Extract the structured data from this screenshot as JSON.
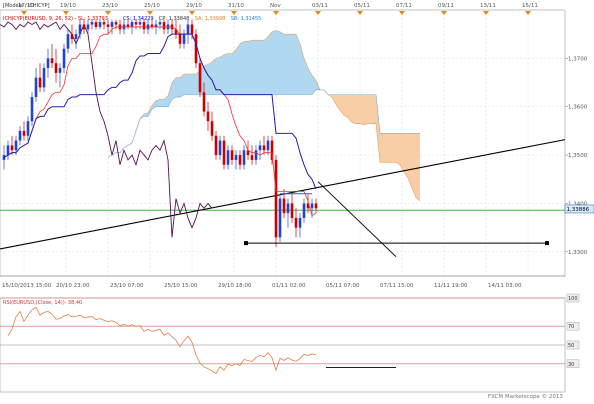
{
  "chart_data": [
    {
      "type": "candlestick",
      "top_dates": [
        "17/10",
        "19/10",
        "23/10",
        "25/10",
        "29/10",
        "31/10",
        "Nov",
        "03/11",
        "05/11",
        "07/11",
        "09/11",
        "13/11",
        "15/11"
      ],
      "price_ticks": [
        "1,3700",
        "1,3600",
        "1,3500",
        "1,3400",
        "1,3300"
      ],
      "ylim": [
        1.325,
        1.38
      ],
      "last_price_label": "1,33886",
      "legend_lines": [
        {
          "text": "[Modèle : ICHICYP]",
          "color": "#333333"
        },
        {
          "text": "ICHICYP(EURUSD, 9, 26, 52) - SL: 1,33793",
          "color": "#cc0000"
        },
        {
          "text": "CS: 1,34229",
          "color": "#0000cc"
        },
        {
          "text": "CP: 1,33848",
          "color": "#333333"
        },
        {
          "text": "SA: 1,33998",
          "color": "#e08020"
        },
        {
          "text": "SB: 1,31455",
          "color": "#2080e0"
        }
      ],
      "x_time_labels": [
        "15/10/2013 15:00",
        "20/10 23:00",
        "23/10 07:00",
        "25/10 15:00",
        "29/10 18:00",
        "01/11 02:00",
        "05/11 07:00",
        "07/11 15:00",
        "11/11 19:00",
        "14/11 03:00"
      ],
      "candles": [
        {
          "o": 1.349,
          "h": 1.352,
          "l": 1.347,
          "c": 1.35
        },
        {
          "o": 1.35,
          "h": 1.353,
          "l": 1.349,
          "c": 1.352
        },
        {
          "o": 1.352,
          "h": 1.354,
          "l": 1.35,
          "c": 1.351
        },
        {
          "o": 1.351,
          "h": 1.354,
          "l": 1.35,
          "c": 1.353
        },
        {
          "o": 1.353,
          "h": 1.356,
          "l": 1.352,
          "c": 1.355
        },
        {
          "o": 1.355,
          "h": 1.357,
          "l": 1.353,
          "c": 1.354
        },
        {
          "o": 1.354,
          "h": 1.358,
          "l": 1.353,
          "c": 1.357
        },
        {
          "o": 1.357,
          "h": 1.363,
          "l": 1.356,
          "c": 1.362
        },
        {
          "o": 1.362,
          "h": 1.368,
          "l": 1.361,
          "c": 1.366
        },
        {
          "o": 1.366,
          "h": 1.369,
          "l": 1.363,
          "c": 1.364
        },
        {
          "o": 1.364,
          "h": 1.369,
          "l": 1.363,
          "c": 1.368
        },
        {
          "o": 1.368,
          "h": 1.372,
          "l": 1.366,
          "c": 1.37
        },
        {
          "o": 1.37,
          "h": 1.373,
          "l": 1.368,
          "c": 1.369
        },
        {
          "o": 1.369,
          "h": 1.372,
          "l": 1.365,
          "c": 1.367
        },
        {
          "o": 1.367,
          "h": 1.369,
          "l": 1.364,
          "c": 1.368
        },
        {
          "o": 1.368,
          "h": 1.373,
          "l": 1.367,
          "c": 1.372
        },
        {
          "o": 1.372,
          "h": 1.376,
          "l": 1.371,
          "c": 1.375
        },
        {
          "o": 1.375,
          "h": 1.377,
          "l": 1.373,
          "c": 1.374
        },
        {
          "o": 1.374,
          "h": 1.376,
          "l": 1.372,
          "c": 1.375
        },
        {
          "o": 1.375,
          "h": 1.378,
          "l": 1.374,
          "c": 1.377
        },
        {
          "o": 1.377,
          "h": 1.378,
          "l": 1.375,
          "c": 1.376
        },
        {
          "o": 1.376,
          "h": 1.378,
          "l": 1.375,
          "c": 1.377
        },
        {
          "o": 1.377,
          "h": 1.378,
          "l": 1.376,
          "c": 1.3775
        },
        {
          "o": 1.3775,
          "h": 1.378,
          "l": 1.376,
          "c": 1.3765
        },
        {
          "o": 1.3765,
          "h": 1.378,
          "l": 1.376,
          "c": 1.3775
        },
        {
          "o": 1.3775,
          "h": 1.378,
          "l": 1.376,
          "c": 1.377
        },
        {
          "o": 1.377,
          "h": 1.378,
          "l": 1.375,
          "c": 1.3765
        },
        {
          "o": 1.3765,
          "h": 1.378,
          "l": 1.375,
          "c": 1.3775
        },
        {
          "o": 1.3775,
          "h": 1.378,
          "l": 1.376,
          "c": 1.377
        },
        {
          "o": 1.377,
          "h": 1.378,
          "l": 1.375,
          "c": 1.376
        },
        {
          "o": 1.376,
          "h": 1.378,
          "l": 1.375,
          "c": 1.377
        },
        {
          "o": 1.377,
          "h": 1.378,
          "l": 1.376,
          "c": 1.3765
        },
        {
          "o": 1.3765,
          "h": 1.378,
          "l": 1.375,
          "c": 1.3775
        },
        {
          "o": 1.3775,
          "h": 1.378,
          "l": 1.376,
          "c": 1.377
        },
        {
          "o": 1.377,
          "h": 1.378,
          "l": 1.376,
          "c": 1.3775
        },
        {
          "o": 1.3775,
          "h": 1.378,
          "l": 1.375,
          "c": 1.376
        },
        {
          "o": 1.376,
          "h": 1.378,
          "l": 1.375,
          "c": 1.377
        },
        {
          "o": 1.377,
          "h": 1.378,
          "l": 1.376,
          "c": 1.3765
        },
        {
          "o": 1.3765,
          "h": 1.378,
          "l": 1.375,
          "c": 1.377
        },
        {
          "o": 1.377,
          "h": 1.378,
          "l": 1.376,
          "c": 1.3775
        },
        {
          "o": 1.3775,
          "h": 1.378,
          "l": 1.375,
          "c": 1.376
        },
        {
          "o": 1.376,
          "h": 1.378,
          "l": 1.375,
          "c": 1.377
        },
        {
          "o": 1.377,
          "h": 1.378,
          "l": 1.375,
          "c": 1.376
        },
        {
          "o": 1.376,
          "h": 1.378,
          "l": 1.374,
          "c": 1.375
        },
        {
          "o": 1.375,
          "h": 1.377,
          "l": 1.372,
          "c": 1.373
        },
        {
          "o": 1.373,
          "h": 1.376,
          "l": 1.372,
          "c": 1.375
        },
        {
          "o": 1.375,
          "h": 1.378,
          "l": 1.373,
          "c": 1.377
        },
        {
          "o": 1.377,
          "h": 1.378,
          "l": 1.374,
          "c": 1.375
        },
        {
          "o": 1.375,
          "h": 1.376,
          "l": 1.368,
          "c": 1.369
        },
        {
          "o": 1.369,
          "h": 1.37,
          "l": 1.362,
          "c": 1.363
        },
        {
          "o": 1.363,
          "h": 1.365,
          "l": 1.358,
          "c": 1.359
        },
        {
          "o": 1.359,
          "h": 1.361,
          "l": 1.355,
          "c": 1.357
        },
        {
          "o": 1.357,
          "h": 1.359,
          "l": 1.353,
          "c": 1.354
        },
        {
          "o": 1.354,
          "h": 1.355,
          "l": 1.349,
          "c": 1.35
        },
        {
          "o": 1.35,
          "h": 1.354,
          "l": 1.349,
          "c": 1.353
        },
        {
          "o": 1.353,
          "h": 1.354,
          "l": 1.347,
          "c": 1.348
        },
        {
          "o": 1.348,
          "h": 1.352,
          "l": 1.347,
          "c": 1.351
        },
        {
          "o": 1.351,
          "h": 1.352,
          "l": 1.348,
          "c": 1.349
        },
        {
          "o": 1.349,
          "h": 1.351,
          "l": 1.347,
          "c": 1.35
        },
        {
          "o": 1.35,
          "h": 1.351,
          "l": 1.347,
          "c": 1.348
        },
        {
          "o": 1.348,
          "h": 1.352,
          "l": 1.347,
          "c": 1.351
        },
        {
          "o": 1.351,
          "h": 1.353,
          "l": 1.349,
          "c": 1.35
        },
        {
          "o": 1.35,
          "h": 1.352,
          "l": 1.348,
          "c": 1.349
        },
        {
          "o": 1.349,
          "h": 1.352,
          "l": 1.348,
          "c": 1.351
        },
        {
          "o": 1.351,
          "h": 1.353,
          "l": 1.349,
          "c": 1.352
        },
        {
          "o": 1.352,
          "h": 1.354,
          "l": 1.35,
          "c": 1.351
        },
        {
          "o": 1.351,
          "h": 1.354,
          "l": 1.35,
          "c": 1.353
        },
        {
          "o": 1.353,
          "h": 1.354,
          "l": 1.348,
          "c": 1.349
        },
        {
          "o": 1.349,
          "h": 1.35,
          "l": 1.331,
          "c": 1.333
        },
        {
          "o": 1.333,
          "h": 1.342,
          "l": 1.332,
          "c": 1.341
        },
        {
          "o": 1.341,
          "h": 1.343,
          "l": 1.337,
          "c": 1.338
        },
        {
          "o": 1.338,
          "h": 1.341,
          "l": 1.335,
          "c": 1.34
        },
        {
          "o": 1.34,
          "h": 1.342,
          "l": 1.336,
          "c": 1.337
        },
        {
          "o": 1.337,
          "h": 1.339,
          "l": 1.333,
          "c": 1.335
        },
        {
          "o": 1.335,
          "h": 1.338,
          "l": 1.333,
          "c": 1.337
        },
        {
          "o": 1.337,
          "h": 1.341,
          "l": 1.336,
          "c": 1.34
        },
        {
          "o": 1.34,
          "h": 1.342,
          "l": 1.338,
          "c": 1.339
        },
        {
          "o": 1.339,
          "h": 1.341,
          "l": 1.337,
          "c": 1.34
        },
        {
          "o": 1.34,
          "h": 1.341,
          "l": 1.338,
          "c": 1.339
        }
      ]
    },
    {
      "type": "line",
      "title": "RSI(EURUSD,(Close, 14)): 38,40",
      "levels": [
        "100",
        "70",
        "50",
        "30"
      ],
      "ylim": [
        0,
        100
      ]
    }
  ],
  "footer": "FXCM Marketscope © 2013",
  "colors": {
    "candle_up": "#2244cc",
    "candle_down": "#cc0000",
    "tenkan": "#ee3333",
    "kijun": "#2222aa",
    "chikou": "#551155",
    "cloud_bull": "#a9d4f0",
    "cloud_bear": "#f6c99c",
    "trendline": "#000000",
    "green_level": "#22aa22"
  }
}
